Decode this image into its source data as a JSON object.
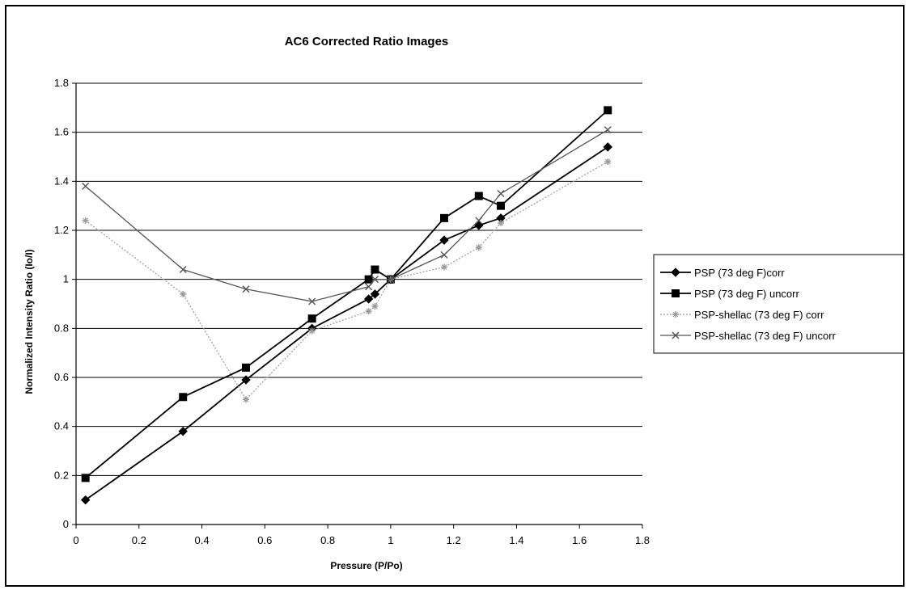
{
  "chart_data": {
    "type": "line",
    "title": "AC6 Corrected Ratio Images",
    "xlabel": "Pressure (P/Po)",
    "ylabel": "Normalized Intensity Ratio (Io/I)",
    "xlim": [
      0,
      1.8
    ],
    "ylim": [
      0,
      1.8
    ],
    "xticks": [
      "0",
      "0.2",
      "0.4",
      "0.6",
      "0.8",
      "1",
      "1.2",
      "1.4",
      "1.6",
      "1.8"
    ],
    "yticks": [
      "0",
      "0.2",
      "0.4",
      "0.6",
      "0.8",
      "1",
      "1.2",
      "1.4",
      "1.6",
      "1.8"
    ],
    "grid": "horizontal",
    "legend_position": "right",
    "series": [
      {
        "name": "PSP (73 deg F)corr",
        "marker": "diamond",
        "color": "#000000",
        "line_style": "solid",
        "x": [
          0.03,
          0.34,
          0.54,
          0.75,
          0.93,
          0.95,
          1.0,
          1.17,
          1.28,
          1.35,
          1.69
        ],
        "y": [
          0.1,
          0.38,
          0.59,
          0.8,
          0.92,
          0.94,
          1.0,
          1.16,
          1.22,
          1.25,
          1.54
        ]
      },
      {
        "name": "PSP (73 deg F) uncorr",
        "marker": "square",
        "color": "#000000",
        "line_style": "solid",
        "x": [
          0.03,
          0.34,
          0.54,
          0.75,
          0.93,
          0.95,
          1.0,
          1.17,
          1.28,
          1.35,
          1.69
        ],
        "y": [
          0.19,
          0.52,
          0.64,
          0.84,
          1.0,
          1.04,
          1.0,
          1.25,
          1.34,
          1.3,
          1.69
        ]
      },
      {
        "name": "PSP-shellac (73 deg F) corr",
        "marker": "star",
        "color": "#9a9a9a",
        "line_style": "dotted",
        "x": [
          0.03,
          0.34,
          0.54,
          0.75,
          0.93,
          0.95,
          1.0,
          1.17,
          1.28,
          1.35,
          1.69
        ],
        "y": [
          1.24,
          0.94,
          0.51,
          0.79,
          0.87,
          0.89,
          1.0,
          1.05,
          1.13,
          1.23,
          1.48
        ]
      },
      {
        "name": "PSP-shellac (73 deg F) uncorr",
        "marker": "x",
        "color": "#555555",
        "line_style": "solid",
        "x": [
          0.03,
          0.34,
          0.54,
          0.75,
          0.93,
          0.95,
          1.0,
          1.17,
          1.28,
          1.35,
          1.69
        ],
        "y": [
          1.38,
          1.04,
          0.96,
          0.91,
          0.97,
          1.0,
          1.0,
          1.1,
          1.24,
          1.35,
          1.61
        ]
      }
    ]
  }
}
